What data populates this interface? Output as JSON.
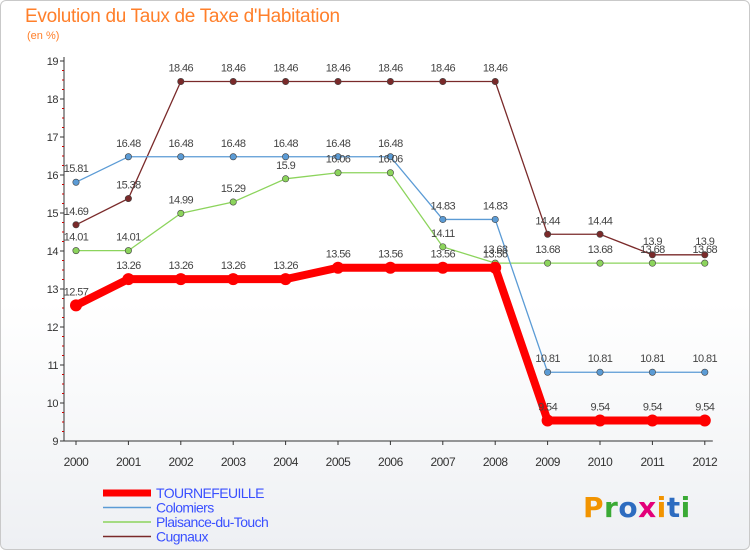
{
  "title": "Evolution du Taux de Taxe d'Habitation",
  "subtitle": "(en %)",
  "logo": {
    "text": "Proxiti",
    "letter_colors": [
      "#f29400",
      "#3aaa35",
      "#2d6cc0",
      "#e3007a",
      "#f29400",
      "#2d6cc0",
      "#3aaa35"
    ]
  },
  "chart_data": {
    "type": "line",
    "x": [
      "2000",
      "2001",
      "2002",
      "2003",
      "2004",
      "2005",
      "2006",
      "2007",
      "2008",
      "2009",
      "2010",
      "2011",
      "2012"
    ],
    "ylim": [
      9,
      19
    ],
    "yticks": [
      "9",
      "10",
      "11",
      "12",
      "13",
      "14",
      "15",
      "16",
      "17",
      "18",
      "19"
    ],
    "grid": false,
    "legend_position": "bottom-left",
    "series": [
      {
        "name": "Cugnaux",
        "color": "#7a2a2a",
        "values": [
          14.69,
          15.38,
          18.46,
          18.46,
          18.46,
          18.46,
          18.46,
          18.46,
          18.46,
          14.44,
          14.44,
          13.9,
          13.9
        ],
        "labels": [
          "14.69",
          "15.38",
          "18.46",
          "18.46",
          "18.46",
          "18.46",
          "18.46",
          "18.46",
          "18.46",
          "14.44",
          "14.44",
          "13.9",
          "13.9"
        ]
      },
      {
        "name": "Plaisance-du-Touch",
        "color": "#8cd45c",
        "values": [
          14.01,
          14.01,
          14.99,
          15.29,
          15.9,
          16.06,
          16.06,
          14.11,
          13.68,
          13.68,
          13.68,
          13.68,
          13.68
        ],
        "labels": [
          "14.01",
          "14.01",
          "14.99",
          "15.29",
          "15.9",
          "16.06",
          "16.06",
          "14.11",
          "13.68",
          "13.68",
          "13.68",
          "13.68",
          "13.68"
        ]
      },
      {
        "name": "Colomiers",
        "color": "#5b9bd5",
        "values": [
          15.81,
          16.48,
          16.48,
          16.48,
          16.48,
          16.48,
          16.48,
          14.83,
          14.83,
          10.81,
          10.81,
          10.81,
          10.81
        ],
        "labels": [
          "15.81",
          "16.48",
          "16.48",
          "16.48",
          "16.48",
          "16.48",
          "16.48",
          "14.83",
          "14.83",
          "10.81",
          "10.81",
          "10.81",
          "10.81"
        ]
      },
      {
        "name": "TOURNEFEUILLE",
        "color": "#ff0000",
        "values": [
          12.57,
          13.26,
          13.26,
          13.26,
          13.26,
          13.56,
          13.56,
          13.56,
          13.56,
          9.54,
          9.54,
          9.54,
          9.54
        ],
        "labels": [
          "12.57",
          "13.26",
          "13.26",
          "13.26",
          "13.26",
          "13.56",
          "13.56",
          "13.56",
          "13.56",
          "9.54",
          "9.54",
          "9.54",
          "9.54"
        ]
      }
    ],
    "legend_order": [
      "TOURNEFEUILLE",
      "Colomiers",
      "Plaisance-du-Touch",
      "Cugnaux"
    ]
  }
}
